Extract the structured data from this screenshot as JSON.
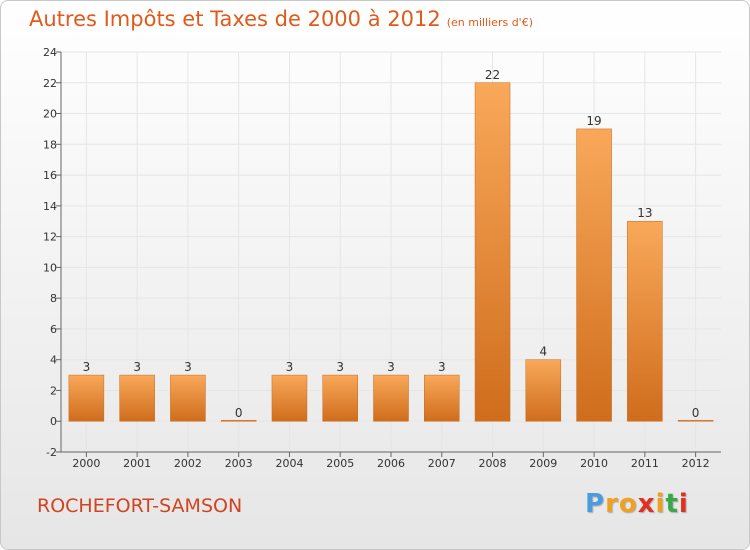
{
  "header": {
    "title": "Autres Impôts et Taxes de 2000 à 2012",
    "unit": "(en milliers d'€)"
  },
  "footer": {
    "commune": "ROCHEFORT-SAMSON",
    "logo": {
      "letters": [
        "P",
        "r",
        "o",
        "x",
        "i",
        "t",
        "i"
      ],
      "colors": [
        "#4a9be0",
        "#f0a020",
        "#f0a020",
        "#e03020",
        "#f0a020",
        "#3aa84a",
        "#e03020"
      ]
    }
  },
  "colors": {
    "title": "#e05a1c",
    "bar_top": "#f9a85a",
    "bar_bottom": "#cf6d1c",
    "axis": "#666666",
    "grid": "#e6e6e6"
  },
  "chart_data": {
    "type": "bar",
    "categories": [
      "2000",
      "2001",
      "2002",
      "2003",
      "2004",
      "2005",
      "2006",
      "2007",
      "2008",
      "2009",
      "2010",
      "2011",
      "2012"
    ],
    "values": [
      3,
      3,
      3,
      0,
      3,
      3,
      3,
      3,
      22,
      4,
      19,
      13,
      0
    ],
    "labels": [
      "3",
      "3",
      "3",
      "0",
      "3",
      "3",
      "3",
      "3",
      "22",
      "4",
      "19",
      "13",
      "0"
    ],
    "yticks": [
      "-2",
      "0",
      "2",
      "4",
      "6",
      "8",
      "10",
      "12",
      "14",
      "16",
      "18",
      "20",
      "22",
      "24"
    ],
    "ylim": [
      -2,
      24
    ],
    "grid": true
  }
}
